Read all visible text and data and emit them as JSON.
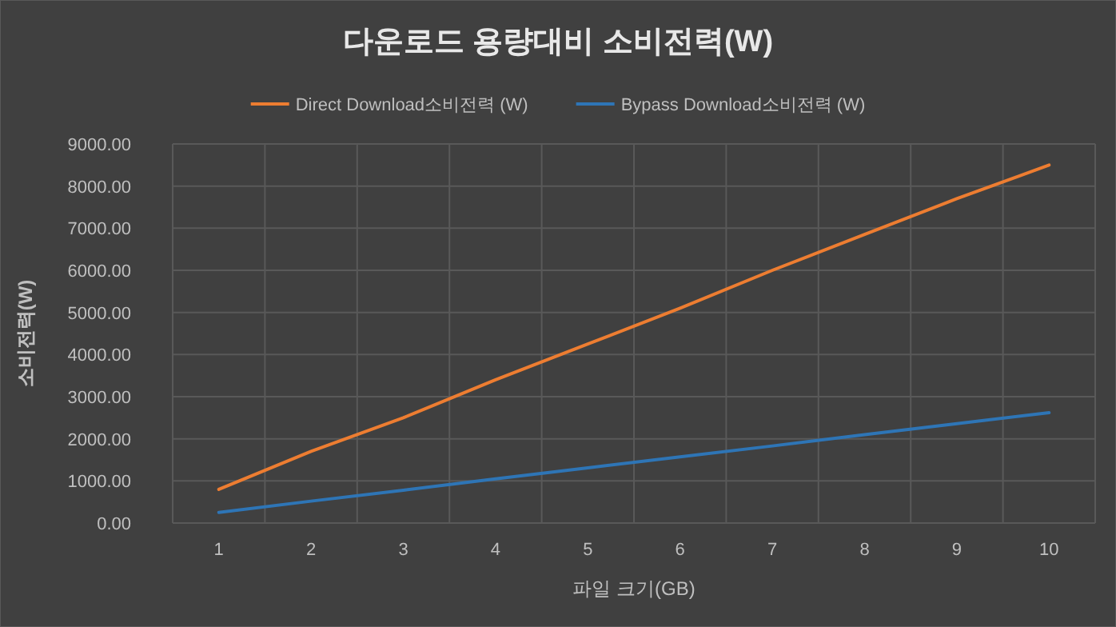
{
  "chart_data": {
    "type": "line",
    "title": "다운로드 용량대비 소비전력(W)",
    "xlabel": "파일 크기(GB)",
    "ylabel": "소비전력(W)",
    "categories": [
      "1",
      "2",
      "3",
      "4",
      "5",
      "6",
      "7",
      "8",
      "9",
      "10"
    ],
    "series": [
      {
        "name": "Direct Download소비전력 (W)",
        "color": "#ed7d31",
        "values": [
          800,
          1700,
          2500,
          3400,
          4250,
          5100,
          6000,
          6850,
          7700,
          8500
        ]
      },
      {
        "name": "Bypass Download소비전력 (W)",
        "color": "#2e75b6",
        "values": [
          250,
          520,
          780,
          1050,
          1310,
          1570,
          1830,
          2100,
          2360,
          2620
        ]
      }
    ],
    "ylim": [
      0,
      9000
    ],
    "yticks": [
      {
        "value": 0,
        "label": "0.00"
      },
      {
        "value": 1000,
        "label": "1000.00"
      },
      {
        "value": 2000,
        "label": "2000.00"
      },
      {
        "value": 3000,
        "label": "3000.00"
      },
      {
        "value": 4000,
        "label": "4000.00"
      },
      {
        "value": 5000,
        "label": "5000.00"
      },
      {
        "value": 6000,
        "label": "6000.00"
      },
      {
        "value": 7000,
        "label": "7000.00"
      },
      {
        "value": 8000,
        "label": "8000.00"
      },
      {
        "value": 9000,
        "label": "9000.00"
      }
    ],
    "grid": true,
    "legend": "top",
    "marker": "none",
    "line_style": "solid"
  }
}
